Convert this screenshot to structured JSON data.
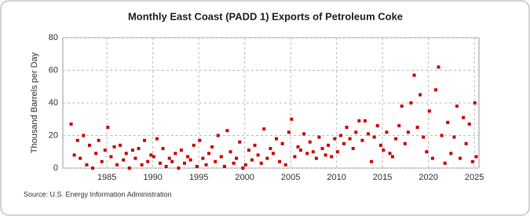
{
  "chart_data": {
    "type": "scatter",
    "title": "Monthly East Coast (PADD 1) Exports of Petroleum Coke",
    "y_label": "Thousand Barrels per Day",
    "source": "Source: U.S. Energy Information Administration",
    "color": "#cc0000",
    "grid": true,
    "xlim": [
      1980.2,
      2025.5
    ],
    "xticks": [
      1985,
      1990,
      1995,
      2000,
      2005,
      2010,
      2015,
      2020,
      2025
    ],
    "ylim": [
      0,
      80
    ],
    "yticks": [
      0,
      20,
      40,
      60,
      80
    ],
    "x": [
      1981.1,
      1981.45,
      1981.8,
      1982.1,
      1982.45,
      1982.8,
      1983.1,
      1983.45,
      1983.8,
      1984.1,
      1984.45,
      1984.8,
      1985.1,
      1985.45,
      1985.8,
      1986.1,
      1986.45,
      1986.8,
      1987.1,
      1987.45,
      1987.8,
      1988.1,
      1988.45,
      1988.8,
      1989.1,
      1989.45,
      1989.8,
      1990.1,
      1990.45,
      1990.8,
      1991.1,
      1991.45,
      1991.8,
      1992.1,
      1992.45,
      1992.8,
      1993.1,
      1993.45,
      1993.8,
      1994.1,
      1994.45,
      1994.8,
      1995.1,
      1995.45,
      1995.8,
      1996.1,
      1996.45,
      1996.8,
      1997.1,
      1997.45,
      1997.8,
      1998.1,
      1998.45,
      1998.8,
      1999.1,
      1999.45,
      1999.8,
      2000.1,
      2000.45,
      2000.8,
      2001.1,
      2001.45,
      2001.8,
      2002.1,
      2002.45,
      2002.8,
      2003.1,
      2003.45,
      2003.8,
      2004.1,
      2004.45,
      2004.8,
      2005.1,
      2005.45,
      2005.8,
      2006.1,
      2006.45,
      2006.8,
      2007.1,
      2007.45,
      2007.8,
      2008.1,
      2008.45,
      2008.8,
      2009.1,
      2009.45,
      2009.8,
      2010.1,
      2010.45,
      2010.8,
      2011.1,
      2011.45,
      2011.8,
      2012.1,
      2012.45,
      2012.8,
      2013.1,
      2013.45,
      2013.8,
      2014.1,
      2014.45,
      2014.8,
      2015.1,
      2015.45,
      2015.8,
      2016.1,
      2016.45,
      2016.8,
      2017.1,
      2017.45,
      2017.8,
      2018.1,
      2018.45,
      2018.8,
      2019.1,
      2019.45,
      2019.8,
      2020.1,
      2020.45,
      2020.8,
      2021.1,
      2021.45,
      2021.8,
      2022.1,
      2022.45,
      2022.8,
      2023.1,
      2023.45,
      2023.8,
      2024.1,
      2024.45,
      2024.8,
      2025.05,
      2025.2
    ],
    "values": [
      27,
      8,
      17,
      6,
      20,
      2,
      14,
      0,
      9,
      17,
      4,
      11,
      25,
      7,
      13,
      2,
      14,
      5,
      9,
      0,
      11,
      6,
      12,
      2,
      17,
      4,
      8,
      7,
      18,
      3,
      12,
      1,
      6,
      4,
      9,
      0,
      11,
      3,
      7,
      5,
      14,
      1,
      17,
      6,
      2,
      9,
      13,
      4,
      20,
      7,
      1,
      23,
      10,
      3,
      6,
      16,
      0,
      2,
      11,
      5,
      14,
      8,
      3,
      24,
      6,
      12,
      9,
      18,
      4,
      15,
      2,
      22,
      30,
      7,
      13,
      11,
      21,
      9,
      16,
      10,
      6,
      19,
      12,
      8,
      14,
      7,
      18,
      10,
      20,
      15,
      25,
      18,
      12,
      22,
      29,
      17,
      29,
      21,
      4,
      19,
      26,
      14,
      11,
      22,
      9,
      7,
      18,
      26,
      38,
      15,
      22,
      40,
      57,
      25,
      45,
      19,
      10,
      35,
      6,
      48,
      62,
      20,
      3,
      28,
      9,
      19,
      38,
      6,
      31,
      15,
      27,
      4,
      40,
      7
    ]
  }
}
